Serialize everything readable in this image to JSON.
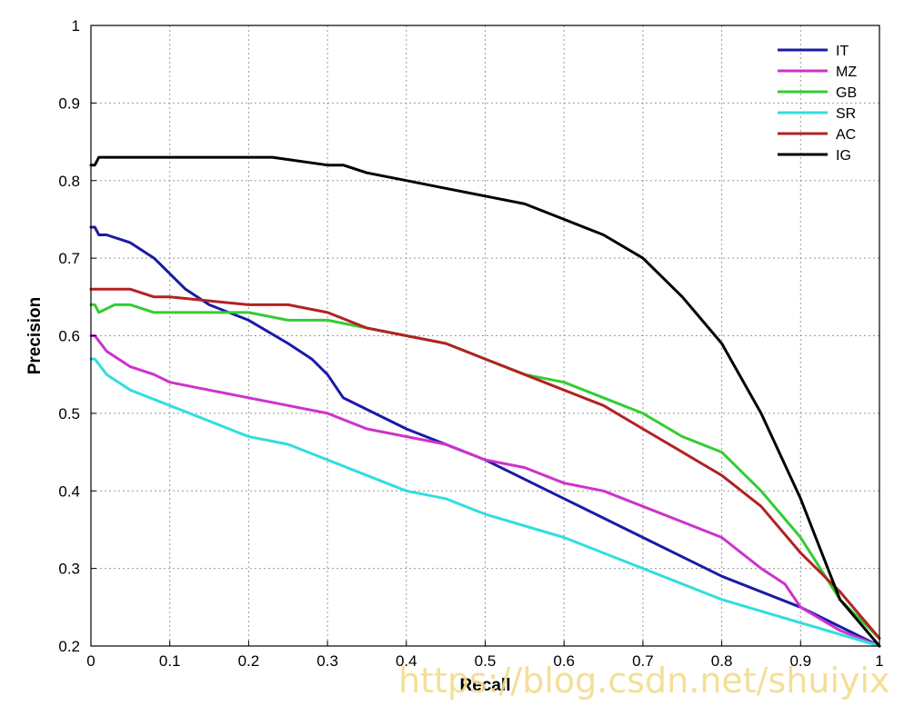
{
  "chart_data": {
    "type": "line",
    "title": "",
    "xlabel": "Recall",
    "ylabel": "Precision",
    "xlim": [
      0,
      1
    ],
    "ylim": [
      0.2,
      1
    ],
    "xticks": [
      "0",
      "0.1",
      "0.2",
      "0.3",
      "0.4",
      "0.5",
      "0.6",
      "0.7",
      "0.8",
      "0.9",
      "1"
    ],
    "yticks": [
      "0.2",
      "0.3",
      "0.4",
      "0.5",
      "0.6",
      "0.7",
      "0.8",
      "0.9",
      "1"
    ],
    "grid": true,
    "legend_position": "top-right",
    "series": [
      {
        "name": "IT",
        "color": "#1a1aa6",
        "x": [
          0,
          0.005,
          0.01,
          0.02,
          0.05,
          0.08,
          0.1,
          0.12,
          0.15,
          0.2,
          0.25,
          0.28,
          0.3,
          0.32,
          0.4,
          0.5,
          0.6,
          0.7,
          0.8,
          0.9,
          1.0
        ],
        "y": [
          0.74,
          0.74,
          0.73,
          0.73,
          0.72,
          0.7,
          0.68,
          0.66,
          0.64,
          0.62,
          0.59,
          0.57,
          0.55,
          0.52,
          0.48,
          0.44,
          0.39,
          0.34,
          0.29,
          0.25,
          0.2
        ]
      },
      {
        "name": "MZ",
        "color": "#cc33cc",
        "x": [
          0,
          0.005,
          0.02,
          0.05,
          0.08,
          0.1,
          0.15,
          0.2,
          0.25,
          0.3,
          0.35,
          0.4,
          0.45,
          0.5,
          0.55,
          0.6,
          0.65,
          0.7,
          0.75,
          0.8,
          0.85,
          0.88,
          0.9,
          0.95,
          1.0
        ],
        "y": [
          0.6,
          0.6,
          0.58,
          0.56,
          0.55,
          0.54,
          0.53,
          0.52,
          0.51,
          0.5,
          0.48,
          0.47,
          0.46,
          0.44,
          0.43,
          0.41,
          0.4,
          0.38,
          0.36,
          0.34,
          0.3,
          0.28,
          0.25,
          0.22,
          0.2
        ]
      },
      {
        "name": "GB",
        "color": "#33cc33",
        "x": [
          0,
          0.005,
          0.01,
          0.03,
          0.05,
          0.08,
          0.1,
          0.2,
          0.25,
          0.3,
          0.35,
          0.4,
          0.45,
          0.5,
          0.55,
          0.6,
          0.65,
          0.7,
          0.75,
          0.8,
          0.85,
          0.9,
          0.95,
          1.0
        ],
        "y": [
          0.64,
          0.64,
          0.63,
          0.64,
          0.64,
          0.63,
          0.63,
          0.63,
          0.62,
          0.62,
          0.61,
          0.6,
          0.59,
          0.57,
          0.55,
          0.54,
          0.52,
          0.5,
          0.47,
          0.45,
          0.4,
          0.34,
          0.26,
          0.21
        ]
      },
      {
        "name": "SR",
        "color": "#33dddd",
        "x": [
          0,
          0.005,
          0.02,
          0.05,
          0.1,
          0.15,
          0.2,
          0.25,
          0.3,
          0.35,
          0.4,
          0.45,
          0.5,
          0.6,
          0.7,
          0.8,
          0.9,
          1.0
        ],
        "y": [
          0.57,
          0.57,
          0.55,
          0.53,
          0.51,
          0.49,
          0.47,
          0.46,
          0.44,
          0.42,
          0.4,
          0.39,
          0.37,
          0.34,
          0.3,
          0.26,
          0.23,
          0.2
        ]
      },
      {
        "name": "AC",
        "color": "#b22222",
        "x": [
          0,
          0.005,
          0.05,
          0.08,
          0.1,
          0.2,
          0.25,
          0.3,
          0.35,
          0.4,
          0.45,
          0.5,
          0.55,
          0.6,
          0.65,
          0.7,
          0.75,
          0.8,
          0.85,
          0.9,
          0.95,
          1.0
        ],
        "y": [
          0.66,
          0.66,
          0.66,
          0.65,
          0.65,
          0.64,
          0.64,
          0.63,
          0.61,
          0.6,
          0.59,
          0.57,
          0.55,
          0.53,
          0.51,
          0.48,
          0.45,
          0.42,
          0.38,
          0.32,
          0.27,
          0.21
        ]
      },
      {
        "name": "IG",
        "color": "#000000",
        "x": [
          0,
          0.005,
          0.01,
          0.02,
          0.1,
          0.2,
          0.23,
          0.3,
          0.32,
          0.35,
          0.4,
          0.45,
          0.5,
          0.55,
          0.6,
          0.65,
          0.7,
          0.75,
          0.8,
          0.85,
          0.9,
          0.95,
          1.0
        ],
        "y": [
          0.82,
          0.82,
          0.83,
          0.83,
          0.83,
          0.83,
          0.83,
          0.82,
          0.82,
          0.81,
          0.8,
          0.79,
          0.78,
          0.77,
          0.75,
          0.73,
          0.7,
          0.65,
          0.59,
          0.5,
          0.39,
          0.26,
          0.2
        ]
      }
    ]
  },
  "watermark": "https://blog.csdn.net/shuiyix"
}
